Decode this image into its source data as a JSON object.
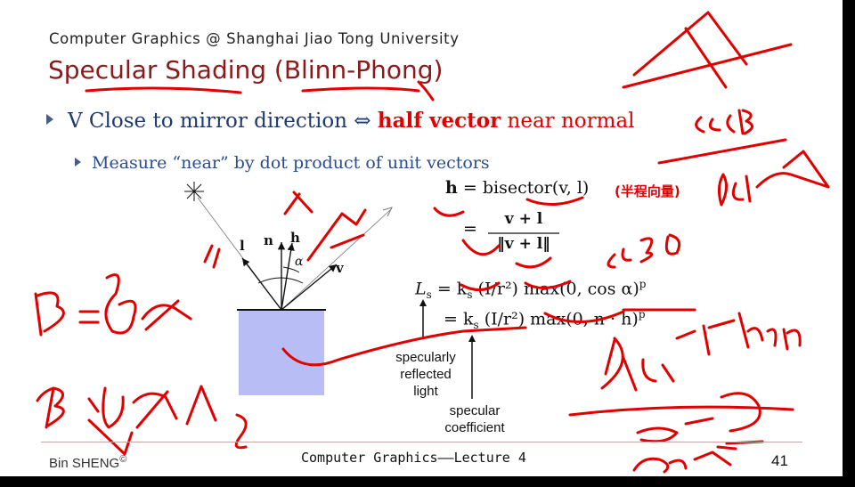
{
  "header": {
    "course": "Computer Graphics @ Shanghai Jiao Tong University"
  },
  "title": "Specular Shading (Blinn-Phong)",
  "bullet1": {
    "pre": "V Close to mirror direction ⇔ ",
    "highlight": "half vector",
    "post": " near normal"
  },
  "bullet2": {
    "text": "Measure “near” by dot product of unit vectors"
  },
  "diagram": {
    "l": "l",
    "n": "n",
    "h": "h",
    "v": "v",
    "alpha": "α"
  },
  "equations": {
    "h_lhs": "h",
    "h_eq": "= bisector(v, l)",
    "h_frac_top": "v + l",
    "h_frac_bot": "‖v + l‖",
    "ls_lhs": "L",
    "ls_sub": "s",
    "ls_line1": "= k",
    "ls_line1_rest": " (I/r²) max(0, cos α)",
    "ls_line2": "= k",
    "ls_line2_rest": " (I/r²) max(0, n · h)",
    "sup_p": "p",
    "sub_s": "s"
  },
  "annotation_cn": "(半程向量)",
  "labels": {
    "reflected": [
      "specularly",
      "reflected",
      "light"
    ],
    "coefficient": [
      "specular",
      "coefficient"
    ]
  },
  "footer": {
    "author": "Bin  SHENG",
    "copyright": "©",
    "lecture": "Computer Graphics——Lecture 4",
    "page": "41"
  },
  "colors": {
    "title": "#8b1a1a",
    "highlight": "#e00000",
    "ink": "#e00000",
    "surface": "#b8bdf5"
  }
}
